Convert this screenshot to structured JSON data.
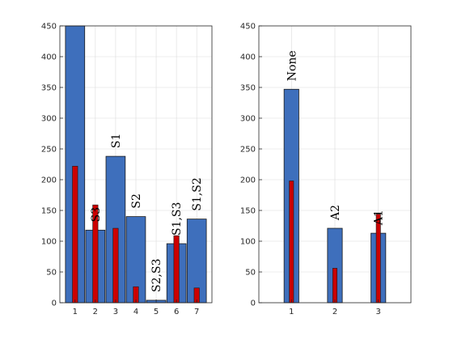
{
  "chart_data": [
    {
      "type": "bar",
      "categories": [
        "1",
        "2",
        "3",
        "4",
        "5",
        "6",
        "7"
      ],
      "series": [
        {
          "values": [
            450,
            118,
            238,
            140,
            4,
            96,
            136
          ],
          "color": "#3e6fbc"
        },
        {
          "values": [
            222,
            159,
            121,
            26,
            0,
            109,
            24
          ],
          "color": "#cc0000"
        }
      ],
      "bar_labels": [
        "",
        "S3",
        "S1",
        "S2",
        "S2,S3",
        "S1,S3",
        "S1,S2"
      ],
      "ylim": [
        0,
        450
      ],
      "yticks": [
        0,
        50,
        100,
        150,
        200,
        250,
        300,
        350,
        400,
        450
      ],
      "grid": true
    },
    {
      "type": "bar",
      "categories": [
        "1",
        "2",
        "3"
      ],
      "series": [
        {
          "values": [
            347,
            121,
            113
          ],
          "color": "#3e6fbc"
        },
        {
          "values": [
            198,
            56,
            144
          ],
          "color": "#cc0000"
        }
      ],
      "bar_labels": [
        "None",
        "A2",
        "A1"
      ],
      "ylim": [
        0,
        450
      ],
      "yticks": [
        0,
        50,
        100,
        150,
        200,
        250,
        300,
        350,
        400,
        450
      ],
      "grid": true
    }
  ]
}
